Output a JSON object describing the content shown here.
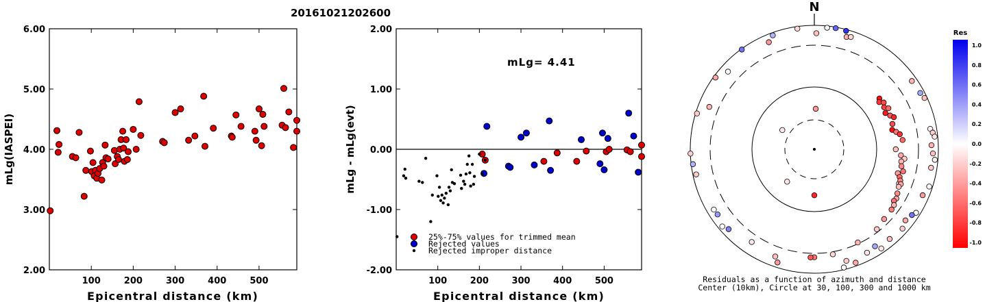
{
  "title": "20161021202600",
  "chart_data": [
    {
      "type": "scatter",
      "xlabel": "Epicentral distance (km)",
      "ylabel": "mLg(IASPEI)",
      "xlim": [
        0,
        590
      ],
      "ylim": [
        2.0,
        6.0
      ],
      "xticks": [
        "100",
        "200",
        "300",
        "400",
        "500"
      ],
      "xtick_values": [
        100,
        200,
        300,
        400,
        500
      ],
      "yticks": [
        "2.00",
        "3.00",
        "4.00",
        "5.00",
        "6.00"
      ],
      "ytick_values": [
        2,
        3,
        4,
        5,
        6
      ],
      "color": "#dd0000",
      "points": [
        [
          2,
          2.98
        ],
        [
          18,
          4.31
        ],
        [
          21,
          3.95
        ],
        [
          23,
          4.08
        ],
        [
          55,
          3.88
        ],
        [
          63,
          3.86
        ],
        [
          71,
          4.28
        ],
        [
          83,
          3.22
        ],
        [
          87,
          3.65
        ],
        [
          98,
          3.97
        ],
        [
          101,
          3.63
        ],
        [
          104,
          3.78
        ],
        [
          107,
          3.56
        ],
        [
          110,
          3.65
        ],
        [
          113,
          3.52
        ],
        [
          116,
          3.6
        ],
        [
          120,
          3.68
        ],
        [
          125,
          3.49
        ],
        [
          127,
          3.78
        ],
        [
          130,
          3.72
        ],
        [
          133,
          4.07
        ],
        [
          135,
          3.86
        ],
        [
          140,
          3.84
        ],
        [
          155,
          3.98
        ],
        [
          157,
          3.76
        ],
        [
          162,
          3.88
        ],
        [
          165,
          3.83
        ],
        [
          168,
          4.0
        ],
        [
          171,
          4.16
        ],
        [
          175,
          4.3
        ],
        [
          177,
          4.02
        ],
        [
          179,
          3.8
        ],
        [
          183,
          4.16
        ],
        [
          186,
          3.83
        ],
        [
          188,
          3.96
        ],
        [
          200,
          4.33
        ],
        [
          207,
          4.0
        ],
        [
          214,
          4.79
        ],
        [
          218,
          4.23
        ],
        [
          270,
          4.13
        ],
        [
          274,
          4.11
        ],
        [
          300,
          4.61
        ],
        [
          313,
          4.67
        ],
        [
          332,
          4.15
        ],
        [
          347,
          4.22
        ],
        [
          368,
          4.88
        ],
        [
          371,
          4.05
        ],
        [
          391,
          4.35
        ],
        [
          434,
          4.22
        ],
        [
          436,
          4.2
        ],
        [
          445,
          4.57
        ],
        [
          457,
          4.38
        ],
        [
          490,
          4.3
        ],
        [
          493,
          4.15
        ],
        [
          500,
          4.67
        ],
        [
          506,
          4.06
        ],
        [
          509,
          4.58
        ],
        [
          512,
          4.38
        ],
        [
          555,
          4.4
        ],
        [
          559,
          5.01
        ],
        [
          563,
          4.36
        ],
        [
          571,
          4.62
        ],
        [
          582,
          4.03
        ],
        [
          592,
          4.3
        ],
        [
          595,
          4.48
        ]
      ]
    },
    {
      "type": "scatter",
      "xlabel": "Epicentral distance (km)",
      "ylabel": "mLg - mLg(evt)",
      "xlim": [
        0,
        590
      ],
      "ylim": [
        -2.0,
        2.0
      ],
      "xticks": [
        "100",
        "200",
        "300",
        "400",
        "500"
      ],
      "xtick_values": [
        100,
        200,
        300,
        400,
        500
      ],
      "yticks": [
        "-2.00",
        "-1.00",
        "0.00",
        "1.00",
        "2.00"
      ],
      "ytick_values": [
        -2,
        -1,
        0,
        1,
        2
      ],
      "reference_line": 0.0,
      "annotation": "mLg= 4.41",
      "legend": [
        {
          "label": "25%-75% values for trimmed mean",
          "color": "#dd0000",
          "marker": "circle"
        },
        {
          "label": "Rejected values",
          "color": "#0000cc",
          "marker": "circle"
        },
        {
          "label": "Rejected improper distance",
          "color": "#000000",
          "marker": "dot"
        }
      ],
      "series": [
        {
          "name": "25%-75% values for trimmed mean",
          "color": "#dd0000",
          "points": [
            [
              207,
              -0.08
            ],
            [
              214,
              -0.18
            ],
            [
              355,
              -0.2
            ],
            [
              387,
              -0.06
            ],
            [
              434,
              -0.2
            ],
            [
              457,
              -0.03
            ],
            [
              505,
              -0.04
            ],
            [
              512,
              0.0
            ],
            [
              555,
              -0.01
            ],
            [
              563,
              -0.04
            ],
            [
              594,
              0.07
            ],
            [
              595,
              -0.12
            ]
          ]
        },
        {
          "name": "Rejected values",
          "color": "#0000cc",
          "points": [
            [
              211,
              -0.4
            ],
            [
              218,
              0.38
            ],
            [
              270,
              -0.28
            ],
            [
              274,
              -0.3
            ],
            [
              300,
              0.2
            ],
            [
              313,
              0.27
            ],
            [
              332,
              -0.26
            ],
            [
              368,
              0.47
            ],
            [
              371,
              -0.35
            ],
            [
              445,
              0.16
            ],
            [
              490,
              -0.24
            ],
            [
              496,
              0.27
            ],
            [
              500,
              -0.34
            ],
            [
              509,
              0.18
            ],
            [
              559,
              0.6
            ],
            [
              571,
              0.22
            ],
            [
              582,
              -0.38
            ]
          ]
        },
        {
          "name": "Rejected improper distance",
          "color": "#000000",
          "points": [
            [
              2,
              -1.45
            ],
            [
              18,
              -0.44
            ],
            [
              21,
              -0.33
            ],
            [
              23,
              -0.48
            ],
            [
              55,
              -0.53
            ],
            [
              63,
              -0.55
            ],
            [
              71,
              -0.15
            ],
            [
              83,
              -1.2
            ],
            [
              87,
              -0.76
            ],
            [
              98,
              -0.44
            ],
            [
              101,
              -0.78
            ],
            [
              104,
              -0.63
            ],
            [
              107,
              -0.85
            ],
            [
              110,
              -0.76
            ],
            [
              113,
              -0.89
            ],
            [
              116,
              -0.81
            ],
            [
              120,
              -0.73
            ],
            [
              125,
              -0.92
            ],
            [
              127,
              -0.63
            ],
            [
              130,
              -0.69
            ],
            [
              133,
              -0.34
            ],
            [
              135,
              -0.55
            ],
            [
              140,
              -0.57
            ],
            [
              155,
              -0.43
            ],
            [
              157,
              -0.65
            ],
            [
              162,
              -0.53
            ],
            [
              165,
              -0.58
            ],
            [
              168,
              -0.41
            ],
            [
              171,
              -0.25
            ],
            [
              175,
              -0.11
            ],
            [
              177,
              -0.39
            ],
            [
              179,
              -0.61
            ],
            [
              183,
              -0.25
            ],
            [
              186,
              -0.58
            ],
            [
              188,
              -0.45
            ],
            [
              200,
              -0.08
            ],
            [
              207,
              -0.41
            ],
            [
              214,
              -0.18
            ]
          ]
        }
      ]
    },
    {
      "type": "scatter",
      "subtype": "polar",
      "north_label": "N",
      "caption_line1": "Residuals as a function of azimuth and distance",
      "caption_line2": "Center (10km), Circle at 30, 100, 300 and 1000 km",
      "colorbar": {
        "title": "Res",
        "ticks": [
          "1.0",
          "0.8",
          "0.6",
          "0.4",
          "0.2",
          "0.0",
          "-0.2",
          "-0.4",
          "-0.6",
          "-0.8",
          "-1.0"
        ],
        "tick_values": [
          1.0,
          0.8,
          0.6,
          0.4,
          0.2,
          0.0,
          -0.2,
          -0.4,
          -0.6,
          -0.8,
          -1.0
        ],
        "positive_color": "#0000ee",
        "negative_color": "#ff0000"
      },
      "points": [
        {
          "az": 112,
          "dist": 214,
          "res": -0.18
        },
        {
          "az": 180,
          "dist": 55,
          "res": -0.85
        },
        {
          "az": 2,
          "dist": 45,
          "res": -0.4
        },
        {
          "az": 301,
          "dist": 40,
          "res": -0.08
        },
        {
          "az": 220,
          "dist": 48,
          "res": -0.1
        },
        {
          "az": 52,
          "dist": 170,
          "res": -0.95
        },
        {
          "az": 54,
          "dist": 160,
          "res": -0.8
        },
        {
          "az": 56,
          "dist": 175,
          "res": -0.7
        },
        {
          "az": 59,
          "dist": 165,
          "res": -0.75
        },
        {
          "az": 61,
          "dist": 180,
          "res": -0.6
        },
        {
          "az": 63,
          "dist": 158,
          "res": -0.9
        },
        {
          "az": 66,
          "dist": 172,
          "res": -0.65
        },
        {
          "az": 68,
          "dist": 185,
          "res": -0.85
        },
        {
          "az": 72,
          "dist": 168,
          "res": -0.7
        },
        {
          "az": 76,
          "dist": 160,
          "res": -0.95
        },
        {
          "az": 78,
          "dist": 175,
          "res": -0.55
        },
        {
          "az": 80,
          "dist": 190,
          "res": -0.8
        },
        {
          "az": 84,
          "dist": 200,
          "res": -0.6
        },
        {
          "az": 90,
          "dist": 165,
          "res": -0.25
        },
        {
          "az": 94,
          "dist": 190,
          "res": -0.35
        },
        {
          "az": 96,
          "dist": 210,
          "res": -0.2
        },
        {
          "az": 98,
          "dist": 195,
          "res": -0.3
        },
        {
          "az": 101,
          "dist": 200,
          "res": -0.45
        },
        {
          "az": 104,
          "dist": 215,
          "res": -0.55
        },
        {
          "az": 106,
          "dist": 190,
          "res": -0.4
        },
        {
          "az": 108,
          "dist": 205,
          "res": -0.6
        },
        {
          "az": 110,
          "dist": 215,
          "res": -0.5
        },
        {
          "az": 112,
          "dist": 225,
          "res": -0.35
        },
        {
          "az": 114,
          "dist": 220,
          "res": -0.25
        },
        {
          "az": 118,
          "dist": 230,
          "res": -0.45
        },
        {
          "az": 121,
          "dist": 240,
          "res": -0.35
        },
        {
          "az": 123,
          "dist": 235,
          "res": -0.55
        },
        {
          "az": 125,
          "dist": 250,
          "res": -0.3
        },
        {
          "az": 128,
          "dist": 255,
          "res": -0.5
        },
        {
          "az": 135,
          "dist": 260,
          "res": -0.4
        },
        {
          "az": 142,
          "dist": 280,
          "res": -0.2
        },
        {
          "az": 155,
          "dist": 290,
          "res": -0.3
        },
        {
          "az": 170,
          "dist": 350,
          "res": -0.15
        },
        {
          "az": 180,
          "dist": 380,
          "res": -0.55
        },
        {
          "az": 182,
          "dist": 385,
          "res": -0.65
        },
        {
          "az": 200,
          "dist": 550,
          "res": -0.25
        },
        {
          "az": 214,
          "dist": 480,
          "res": -0.1
        },
        {
          "az": 236,
          "dist": 640,
          "res": 0.4
        },
        {
          "az": 239,
          "dist": 660,
          "res": -0.02
        },
        {
          "az": 292,
          "dist": 520,
          "res": -0.3
        },
        {
          "az": 312,
          "dist": 620,
          "res": 0.03
        },
        {
          "az": 337,
          "dist": 630,
          "res": -0.4
        },
        {
          "az": 1,
          "dist": 620,
          "res": -0.25
        },
        {
          "az": 340,
          "dist": 850,
          "res": 0.3
        },
        {
          "az": 352,
          "dist": 880,
          "res": -0.15
        },
        {
          "az": 6,
          "dist": 900,
          "res": 0.03
        },
        {
          "az": 10,
          "dist": 940,
          "res": 0.6
        },
        {
          "az": 15,
          "dist": 920,
          "res": 0.8
        },
        {
          "az": 16,
          "dist": 650,
          "res": -0.3
        },
        {
          "az": 18,
          "dist": 700,
          "res": -0.15
        },
        {
          "az": 55,
          "dist": 740,
          "res": -0.3
        },
        {
          "az": 62,
          "dist": 780,
          "res": 0.35
        },
        {
          "az": 65,
          "dist": 860,
          "res": -0.25
        },
        {
          "az": 80,
          "dist": 680,
          "res": -0.05
        },
        {
          "az": 82,
          "dist": 760,
          "res": -0.2
        },
        {
          "az": 84,
          "dist": 830,
          "res": -0.1
        },
        {
          "az": 88,
          "dist": 660,
          "res": -0.3
        },
        {
          "az": 92,
          "dist": 720,
          "res": -0.25
        },
        {
          "az": 95,
          "dist": 830,
          "res": -0.05
        },
        {
          "az": 99,
          "dist": 700,
          "res": -0.2
        },
        {
          "az": 108,
          "dist": 820,
          "res": -0.03
        },
        {
          "az": 113,
          "dist": 680,
          "res": -0.4
        },
        {
          "az": 122,
          "dist": 780,
          "res": 0.03
        },
        {
          "az": 124,
          "dist": 680,
          "res": 0.55
        },
        {
          "az": 128,
          "dist": 600,
          "res": -0.35
        },
        {
          "az": 132,
          "dist": 720,
          "res": -0.2
        },
        {
          "az": 140,
          "dist": 660,
          "res": -0.25
        },
        {
          "az": 146,
          "dist": 770,
          "res": -0.1
        },
        {
          "az": 148,
          "dist": 560,
          "res": 0.35
        },
        {
          "az": 153,
          "dist": 620,
          "res": -0.1
        },
        {
          "az": 160,
          "dist": 820,
          "res": -0.35
        },
        {
          "az": 164,
          "dist": 620,
          "res": -0.2
        },
        {
          "az": 166,
          "dist": 880,
          "res": -0.02
        },
        {
          "az": 198,
          "dist": 740,
          "res": -0.4
        },
        {
          "az": 227,
          "dist": 660,
          "res": 0.5
        },
        {
          "az": 230,
          "dist": 790,
          "res": 0.0
        },
        {
          "az": 258,
          "dist": 820,
          "res": -0.2
        },
        {
          "az": 263,
          "dist": 900,
          "res": 0.3
        },
        {
          "az": 268,
          "dist": 990,
          "res": -0.2
        },
        {
          "az": 287,
          "dist": 920,
          "res": -0.2
        },
        {
          "az": 306,
          "dist": 890,
          "res": -0.35
        },
        {
          "az": 324,
          "dist": 960,
          "res": 0.55
        }
      ]
    }
  ]
}
